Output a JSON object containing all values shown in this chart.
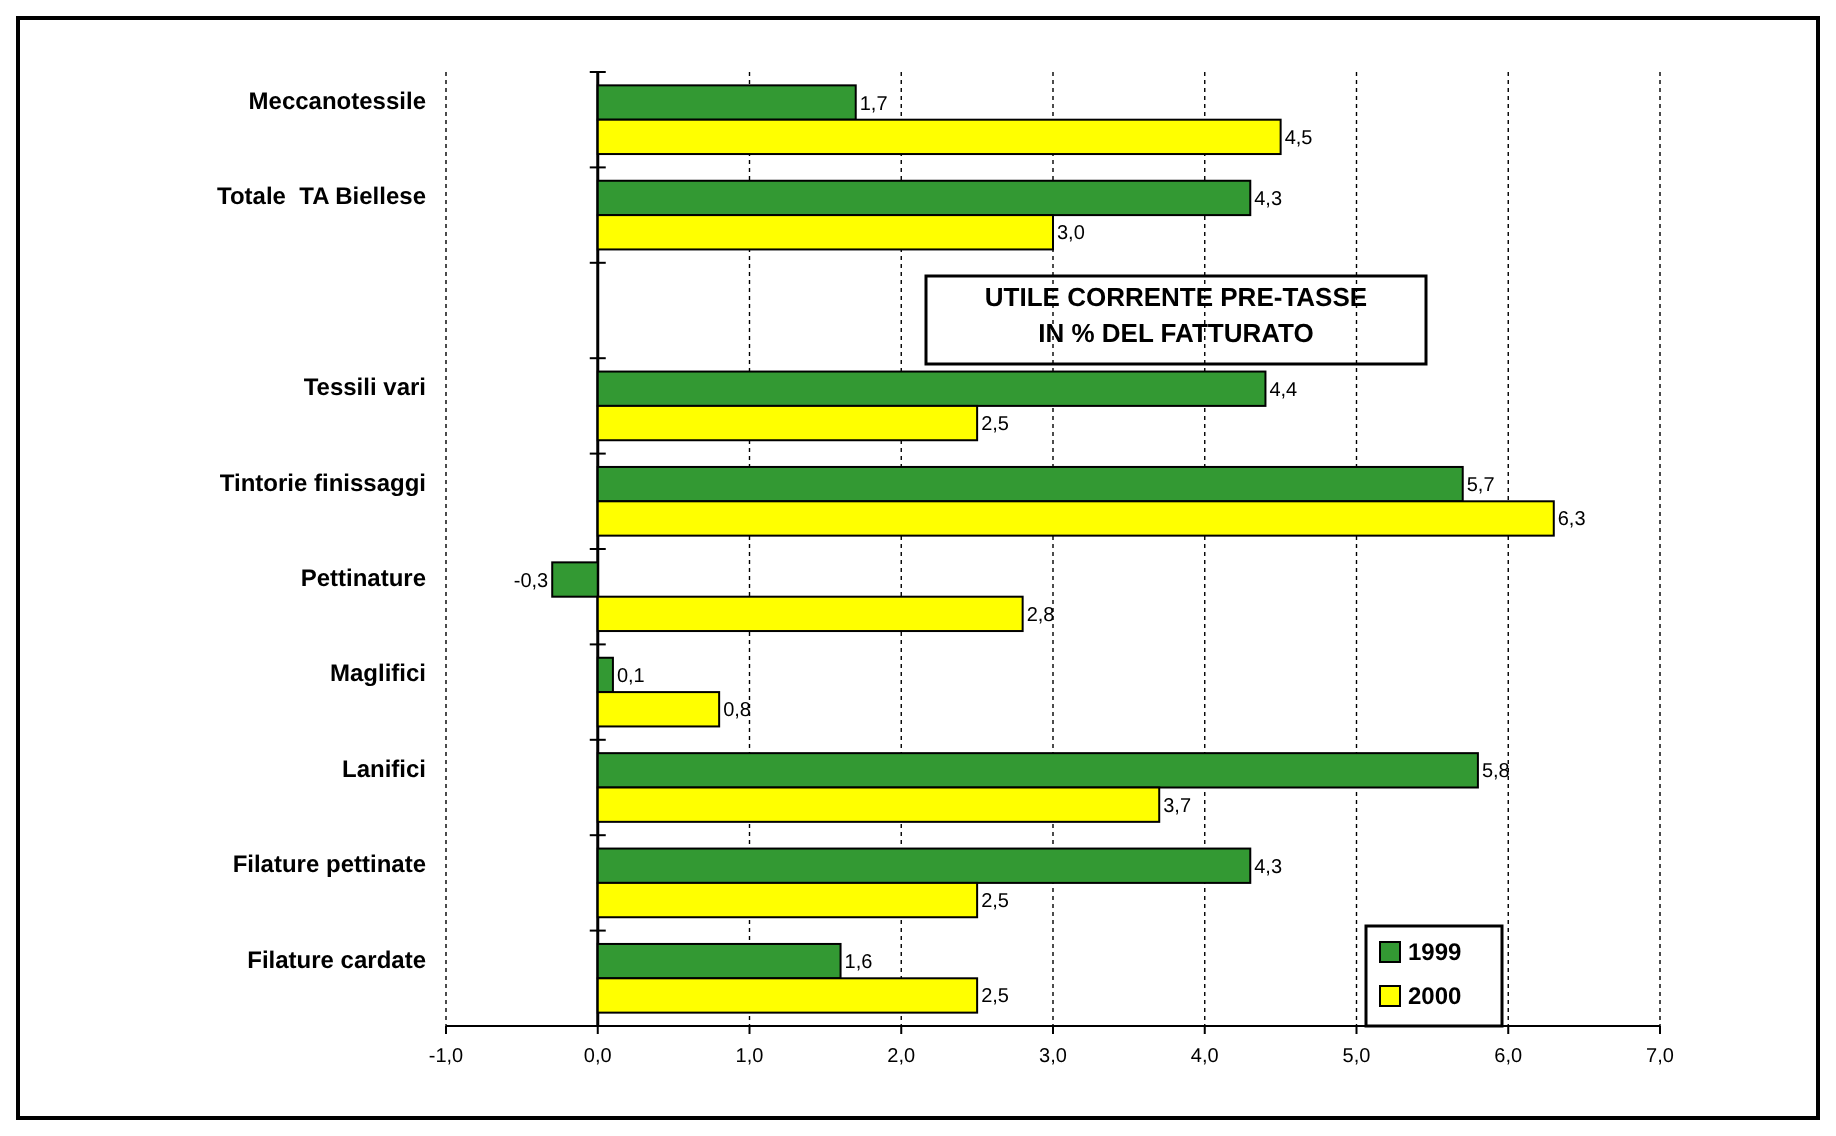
{
  "chart_data": {
    "type": "bar",
    "orientation": "horizontal",
    "title": "UTILE CORRENTE PRE-TASSE IN % DEL FATTURATO",
    "categories": [
      "Meccanotessile",
      "Totale  TA Biellese",
      null,
      "Tessili vari",
      "Tintorie finissaggi",
      "Pettinature",
      "Maglifici",
      "Lanifici",
      "Filature pettinate",
      "Filature cardate"
    ],
    "series": [
      {
        "name": "1999",
        "color": "#339933",
        "values": [
          1.7,
          4.3,
          null,
          4.4,
          5.7,
          -0.3,
          0.1,
          5.8,
          4.3,
          1.6
        ],
        "value_labels": [
          "1,7",
          "4,3",
          null,
          "4,4",
          "5,7",
          "-0,3",
          "0,1",
          "5,8",
          "4,3",
          "1,6"
        ]
      },
      {
        "name": "2000",
        "color": "#ffff00",
        "values": [
          4.5,
          3.0,
          null,
          2.5,
          6.3,
          2.8,
          0.8,
          3.7,
          2.5,
          2.5
        ],
        "value_labels": [
          "4,5",
          "3,0",
          null,
          "2,5",
          "6,3",
          "2,8",
          "0,8",
          "3,7",
          "2,5",
          "2,5"
        ]
      }
    ],
    "xlim": [
      -1,
      7
    ],
    "xticks": [
      {
        "value": -1,
        "label": "-1,0"
      },
      {
        "value": 0,
        "label": "0,0"
      },
      {
        "value": 1,
        "label": "1,0"
      },
      {
        "value": 2,
        "label": "2,0"
      },
      {
        "value": 3,
        "label": "3,0"
      },
      {
        "value": 4,
        "label": "4,0"
      },
      {
        "value": 5,
        "label": "5,0"
      },
      {
        "value": 6,
        "label": "6,0"
      },
      {
        "value": 7,
        "label": "7,0"
      }
    ],
    "grid": "x",
    "legend": "bottom right"
  }
}
